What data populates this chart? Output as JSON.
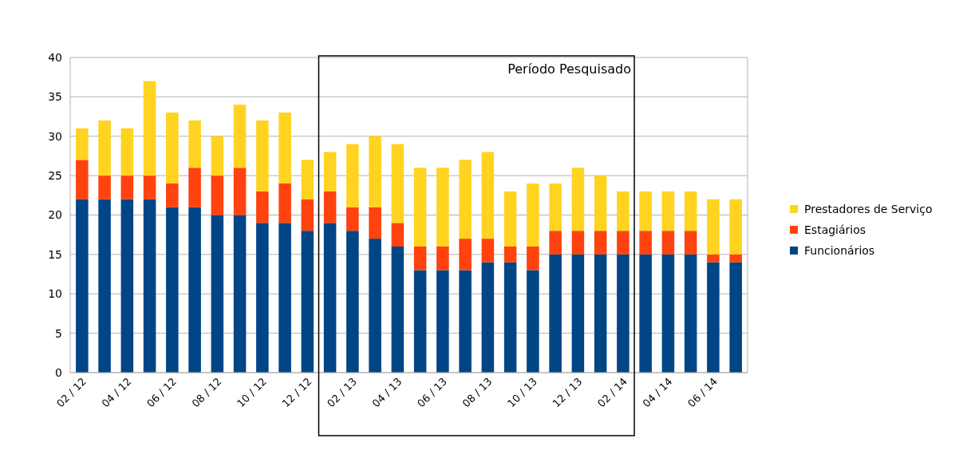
{
  "chart_data": {
    "type": "bar",
    "stacked": true,
    "categories": [
      "02 / 12",
      null,
      "04 / 12",
      null,
      "06 / 12",
      null,
      "08 / 12",
      null,
      "10 / 12",
      null,
      "12 / 12",
      null,
      "02 / 13",
      null,
      "04 / 13",
      null,
      "06 / 13",
      null,
      "08 / 13",
      null,
      "10 / 13",
      null,
      "12 / 13",
      null,
      "02 / 14",
      null,
      "04 / 14",
      null,
      "06 / 14",
      null
    ],
    "series": [
      {
        "name": "Funcionários",
        "color": "#004586",
        "values": [
          22,
          22,
          22,
          22,
          21,
          21,
          20,
          20,
          19,
          19,
          18,
          19,
          18,
          17,
          16,
          13,
          13,
          13,
          14,
          14,
          13,
          15,
          15,
          15,
          15,
          15,
          15,
          15,
          14,
          14
        ]
      },
      {
        "name": "Estagiários",
        "color": "#ff420e",
        "values": [
          5,
          3,
          3,
          3,
          3,
          5,
          5,
          6,
          4,
          5,
          4,
          4,
          3,
          4,
          3,
          3,
          3,
          4,
          3,
          2,
          3,
          3,
          3,
          3,
          3,
          3,
          3,
          3,
          1,
          1
        ]
      },
      {
        "name": "Prestadores de Serviço",
        "color": "#ffd320",
        "values": [
          4,
          7,
          6,
          12,
          9,
          6,
          5,
          8,
          9,
          9,
          5,
          5,
          8,
          9,
          10,
          10,
          10,
          10,
          11,
          7,
          8,
          6,
          8,
          7,
          5,
          5,
          5,
          5,
          7,
          7
        ]
      }
    ],
    "ylim": [
      0,
      40
    ],
    "yticks": [
      0,
      5,
      10,
      15,
      20,
      25,
      30,
      35,
      40
    ],
    "grid": "y",
    "legend": "right",
    "annotations": [
      "Período Pesquisado"
    ]
  }
}
